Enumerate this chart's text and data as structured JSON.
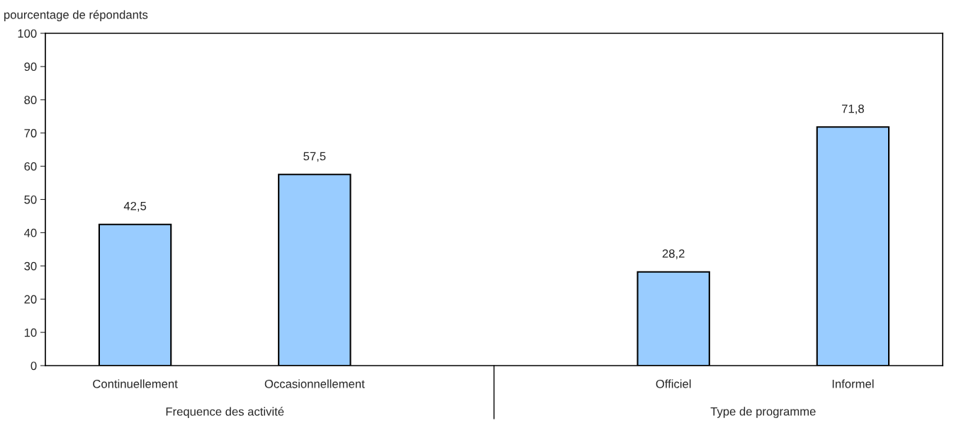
{
  "chart_data": {
    "type": "bar",
    "ylabel": "pourcentage de répondants",
    "categories": [
      "Continuellement",
      "Occasionnellement",
      null,
      "Officiel",
      "Informel"
    ],
    "values": [
      42.5,
      57.5,
      null,
      28.2,
      71.8
    ],
    "value_labels": [
      "42,5",
      "57,5",
      null,
      "28,2",
      "71,8"
    ],
    "color": "#99ccff",
    "ylim": [
      0,
      100
    ],
    "yticks": [
      0,
      10,
      20,
      30,
      40,
      50,
      60,
      70,
      80,
      90,
      100
    ],
    "annotations": [
      "Frequence des activité",
      "Type de programme"
    ],
    "grid": false,
    "legend": false
  }
}
